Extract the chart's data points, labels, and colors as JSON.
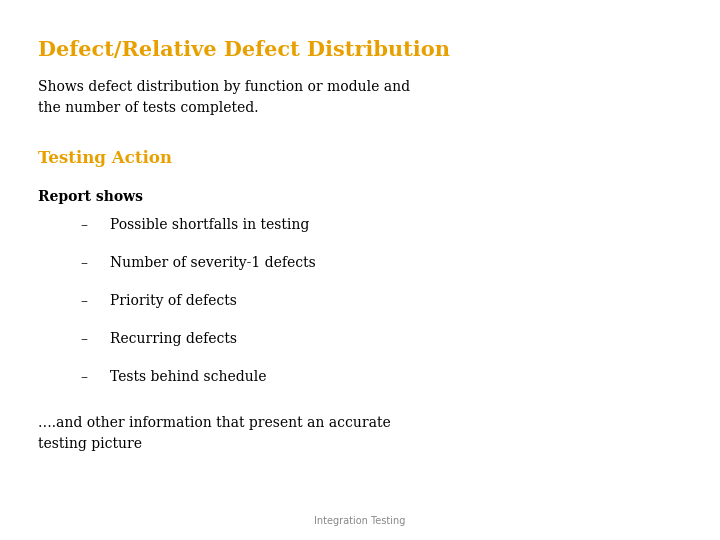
{
  "title": "Defect/Relative Defect Distribution",
  "title_color": "#E8A000",
  "subtitle": "Shows defect distribution by function or module and\nthe number of tests completed.",
  "subtitle_color": "#000000",
  "section_heading": "Testing Action",
  "section_heading_color": "#E8A000",
  "bold_intro": "Report shows",
  "bullet_items": [
    "Possible shortfalls in testing",
    "Number of severity-1 defects",
    "Priority of defects",
    "Recurring defects",
    "Tests behind schedule"
  ],
  "footer_text": "….and other information that present an accurate\ntesting picture",
  "footer_note": "Integration Testing",
  "background_color": "#FFFFFF",
  "text_color": "#000000",
  "bullet_char": "–",
  "title_fontsize": 15,
  "subtitle_fontsize": 10,
  "section_fontsize": 12,
  "body_fontsize": 10,
  "footnote_fontsize": 7
}
